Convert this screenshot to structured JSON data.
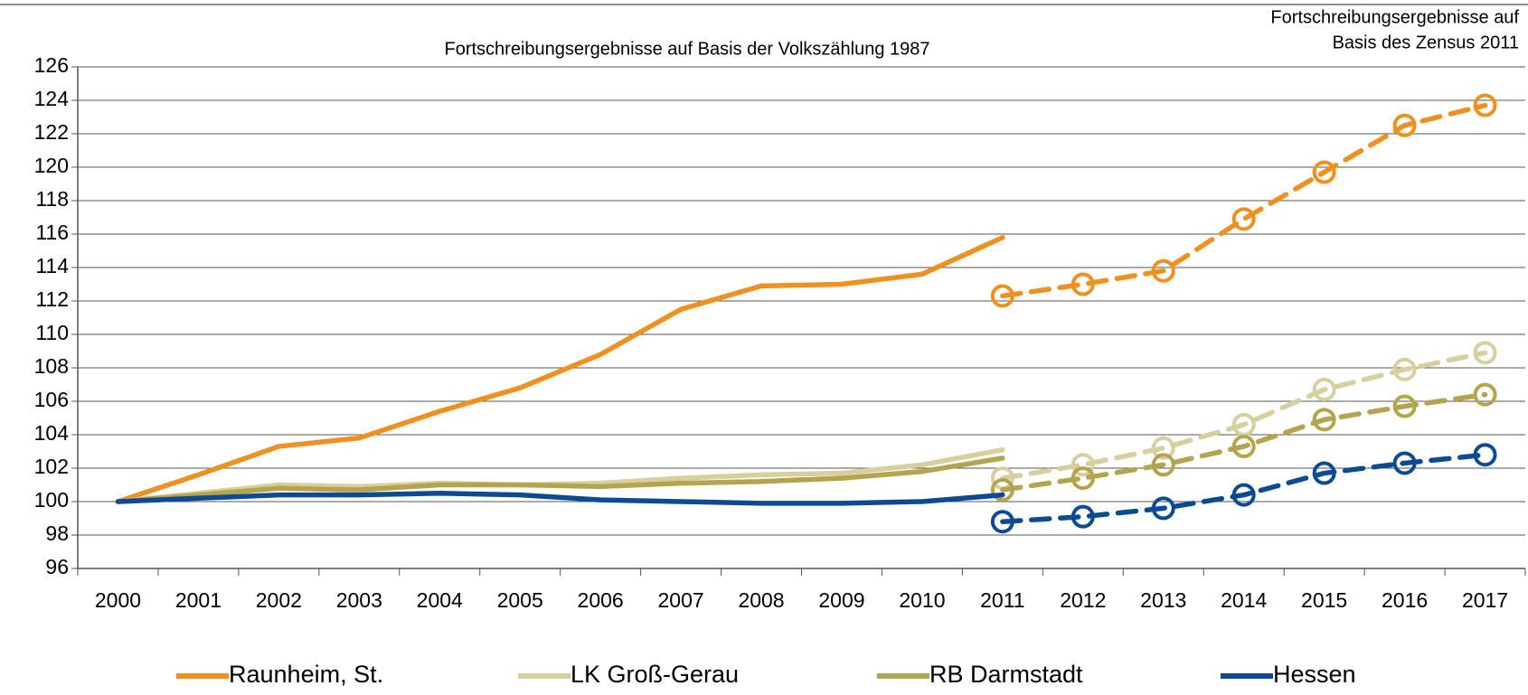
{
  "chart_data": {
    "type": "line",
    "annotations": [
      {
        "lines": [
          "Fortschreibungsergebnisse auf Basis der Volkszählung 1987"
        ]
      },
      {
        "lines": [
          "Fortschreibungsergebnisse auf",
          "Basis des Zensus 2011"
        ]
      }
    ],
    "categories": [
      "2000",
      "2001",
      "2002",
      "2003",
      "2004",
      "2005",
      "2006",
      "2007",
      "2008",
      "2009",
      "2010",
      "2011",
      "2012",
      "2013",
      "2014",
      "2015",
      "2016",
      "2017"
    ],
    "ylim": [
      96,
      126
    ],
    "yticks": [
      96,
      98,
      100,
      102,
      104,
      106,
      108,
      110,
      112,
      114,
      116,
      118,
      120,
      122,
      124,
      126
    ],
    "grid": true,
    "series": [
      {
        "name": "Raunheim, St.",
        "color": "#f0901e",
        "values": [
          100,
          101.6,
          103.3,
          103.8,
          105.4,
          106.8,
          108.8,
          111.5,
          112.9,
          113.0,
          113.6,
          115.8,
          null,
          null,
          null,
          null,
          null,
          null
        ],
        "values_zensus": [
          null,
          null,
          null,
          null,
          null,
          null,
          null,
          null,
          null,
          null,
          null,
          112.3,
          113.0,
          113.8,
          116.9,
          119.7,
          122.5,
          123.7
        ]
      },
      {
        "name": "LK Groß-Gerau",
        "color": "#d8cf9e",
        "values": [
          100,
          100.5,
          101.0,
          100.9,
          101.1,
          101.0,
          101.1,
          101.4,
          101.6,
          101.7,
          102.2,
          103.1,
          null,
          null,
          null,
          null,
          null,
          null
        ],
        "values_zensus": [
          null,
          null,
          null,
          null,
          null,
          null,
          null,
          null,
          null,
          null,
          null,
          101.4,
          102.2,
          103.2,
          104.6,
          106.7,
          107.9,
          108.9
        ]
      },
      {
        "name": "RB Darmstadt",
        "color": "#b4a44e",
        "values": [
          100,
          100.4,
          100.8,
          100.7,
          101.0,
          101.0,
          100.9,
          101.1,
          101.2,
          101.4,
          101.8,
          102.6,
          null,
          null,
          null,
          null,
          null,
          null
        ],
        "values_zensus": [
          null,
          null,
          null,
          null,
          null,
          null,
          null,
          null,
          null,
          null,
          null,
          100.7,
          101.4,
          102.2,
          103.3,
          104.9,
          105.7,
          106.4
        ]
      },
      {
        "name": "Hessen",
        "color": "#0d4a94",
        "values": [
          100,
          100.2,
          100.4,
          100.4,
          100.5,
          100.4,
          100.1,
          100.0,
          99.9,
          99.9,
          100.0,
          100.4,
          null,
          null,
          null,
          null,
          null,
          null
        ],
        "values_zensus": [
          null,
          null,
          null,
          null,
          null,
          null,
          null,
          null,
          null,
          null,
          null,
          98.8,
          99.1,
          99.6,
          100.4,
          101.7,
          102.3,
          102.8
        ]
      }
    ]
  }
}
